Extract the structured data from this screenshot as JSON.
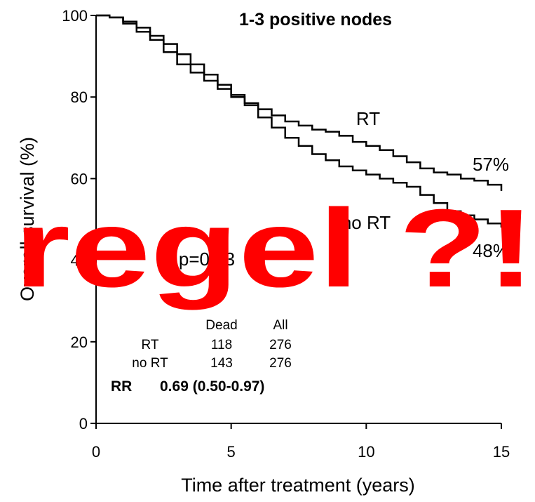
{
  "chart_data": {
    "type": "line",
    "title": "1-3 positive nodes",
    "xlabel": "Time after treatment (years)",
    "ylabel": "Overall survival (%)",
    "x": [
      0,
      0.5,
      1,
      1.5,
      2,
      2.5,
      3,
      3.5,
      4,
      4.5,
      5,
      5.5,
      6,
      6.5,
      7,
      7.5,
      8,
      8.5,
      9,
      9.5,
      10,
      10.5,
      11,
      11.5,
      12,
      12.5,
      13,
      13.5,
      14,
      14.5,
      15
    ],
    "series": [
      {
        "name": "RT",
        "color": "#000000",
        "values": [
          100,
          99.5,
          98,
          96,
          94,
          91,
          88,
          86,
          84,
          82,
          80,
          78.5,
          77,
          75.5,
          74,
          73,
          72,
          71.5,
          70.5,
          69,
          68,
          67,
          65.5,
          64,
          62.5,
          61.5,
          61,
          60,
          59.5,
          58.5,
          57
        ]
      },
      {
        "name": "no RT",
        "color": "#000000",
        "values": [
          100,
          99.5,
          98.5,
          97,
          95,
          93,
          90.5,
          88,
          85.5,
          83,
          80.5,
          78,
          75,
          72.5,
          70,
          68,
          66,
          64.5,
          63,
          62,
          61,
          60,
          59,
          58,
          56,
          54,
          52,
          51,
          50,
          49,
          48
        ]
      }
    ],
    "xlim": [
      0,
      15
    ],
    "xticks": [
      0,
      5,
      10,
      15
    ],
    "ylim": [
      0,
      100
    ],
    "yticks": [
      0,
      20,
      40,
      60,
      80,
      100
    ],
    "annotations": [
      "RT",
      "57%",
      "no RT",
      "48%",
      "p=0.03"
    ],
    "table": {
      "header": [
        "Dead",
        "All"
      ],
      "rows": [
        [
          "RT",
          118,
          276
        ],
        [
          "no RT",
          143,
          276
        ]
      ]
    },
    "summary": {
      "label": "RR",
      "text": "0.69 (0.50-0.97)"
    },
    "overlay": "regel ?!"
  }
}
